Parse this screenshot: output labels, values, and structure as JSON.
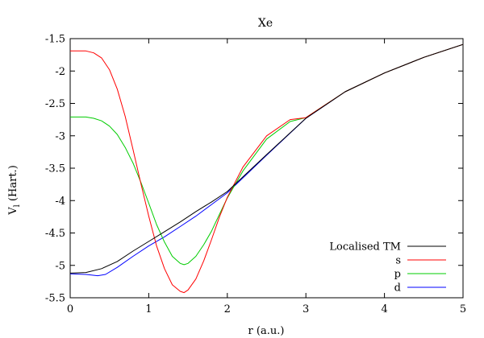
{
  "chart_data": {
    "type": "line",
    "title": "Xe",
    "xlabel": "r (a.u.)",
    "ylabel_main": "V",
    "ylabel_sub": "l",
    "ylabel_tail": " (Hart.)",
    "xlim": [
      0,
      5
    ],
    "ylim": [
      -5.5,
      -1.5
    ],
    "xticks": [
      0,
      1,
      2,
      3,
      4,
      5
    ],
    "yticks": [
      -5.5,
      -5,
      -4.5,
      -4,
      -3.5,
      -3,
      -2.5,
      -2,
      -1.5
    ],
    "xtick_labels": [
      "0",
      "1",
      "2",
      "3",
      "4",
      "5"
    ],
    "ytick_labels": [
      "-5.5",
      "-5",
      "-4.5",
      "-4",
      "-3.5",
      "-3",
      "-2.5",
      "-2",
      "-1.5"
    ],
    "grid": false,
    "legend_position": "bottom-right",
    "series": [
      {
        "name": "Localised TM",
        "color": "#000000",
        "x": [
          0,
          0.2,
          0.4,
          0.6,
          0.8,
          1.0,
          1.2,
          1.4,
          1.6,
          1.8,
          2.0,
          2.5,
          3.0,
          3.5,
          4.0,
          4.5,
          5.0
        ],
        "y": [
          -5.12,
          -5.11,
          -5.05,
          -4.94,
          -4.78,
          -4.63,
          -4.48,
          -4.33,
          -4.17,
          -4.02,
          -3.86,
          -3.29,
          -2.73,
          -2.32,
          -2.03,
          -1.79,
          -1.59
        ]
      },
      {
        "name": "s",
        "color": "#ff0000",
        "x": [
          0,
          0.2,
          0.3,
          0.4,
          0.5,
          0.6,
          0.7,
          0.8,
          0.9,
          1.0,
          1.1,
          1.2,
          1.3,
          1.4,
          1.45,
          1.5,
          1.6,
          1.7,
          1.8,
          1.9,
          2.0,
          2.2,
          2.5,
          2.8,
          3.0,
          3.5,
          4.0,
          4.5,
          5.0
        ],
        "y": [
          -1.69,
          -1.69,
          -1.72,
          -1.8,
          -1.98,
          -2.28,
          -2.7,
          -3.21,
          -3.74,
          -4.24,
          -4.7,
          -5.05,
          -5.3,
          -5.4,
          -5.42,
          -5.38,
          -5.21,
          -4.93,
          -4.6,
          -4.25,
          -3.95,
          -3.48,
          -3.0,
          -2.75,
          -2.72,
          -2.32,
          -2.03,
          -1.79,
          -1.59
        ]
      },
      {
        "name": "p",
        "color": "#00cc00",
        "x": [
          0,
          0.2,
          0.3,
          0.4,
          0.5,
          0.6,
          0.7,
          0.8,
          0.9,
          1.0,
          1.1,
          1.2,
          1.3,
          1.4,
          1.45,
          1.5,
          1.6,
          1.7,
          1.8,
          1.9,
          2.0,
          2.2,
          2.5,
          2.8,
          3.0,
          3.5,
          4.0,
          4.5,
          5.0
        ],
        "y": [
          -2.71,
          -2.71,
          -2.73,
          -2.77,
          -2.85,
          -2.98,
          -3.18,
          -3.42,
          -3.72,
          -4.04,
          -4.37,
          -4.64,
          -4.86,
          -4.97,
          -4.99,
          -4.97,
          -4.86,
          -4.68,
          -4.47,
          -4.21,
          -3.96,
          -3.54,
          -3.05,
          -2.78,
          -2.72,
          -2.32,
          -2.03,
          -1.79,
          -1.59
        ]
      },
      {
        "name": "d",
        "color": "#0000ff",
        "x": [
          0,
          0.2,
          0.35,
          0.45,
          0.6,
          0.8,
          1.0,
          1.2,
          1.4,
          1.6,
          1.8,
          2.0,
          2.5,
          3.0,
          3.5,
          4.0,
          4.5,
          5.0
        ],
        "y": [
          -5.13,
          -5.14,
          -5.16,
          -5.14,
          -5.03,
          -4.86,
          -4.7,
          -4.56,
          -4.4,
          -4.24,
          -4.06,
          -3.88,
          -3.3,
          -2.73,
          -2.32,
          -2.03,
          -1.79,
          -1.59
        ]
      }
    ]
  }
}
